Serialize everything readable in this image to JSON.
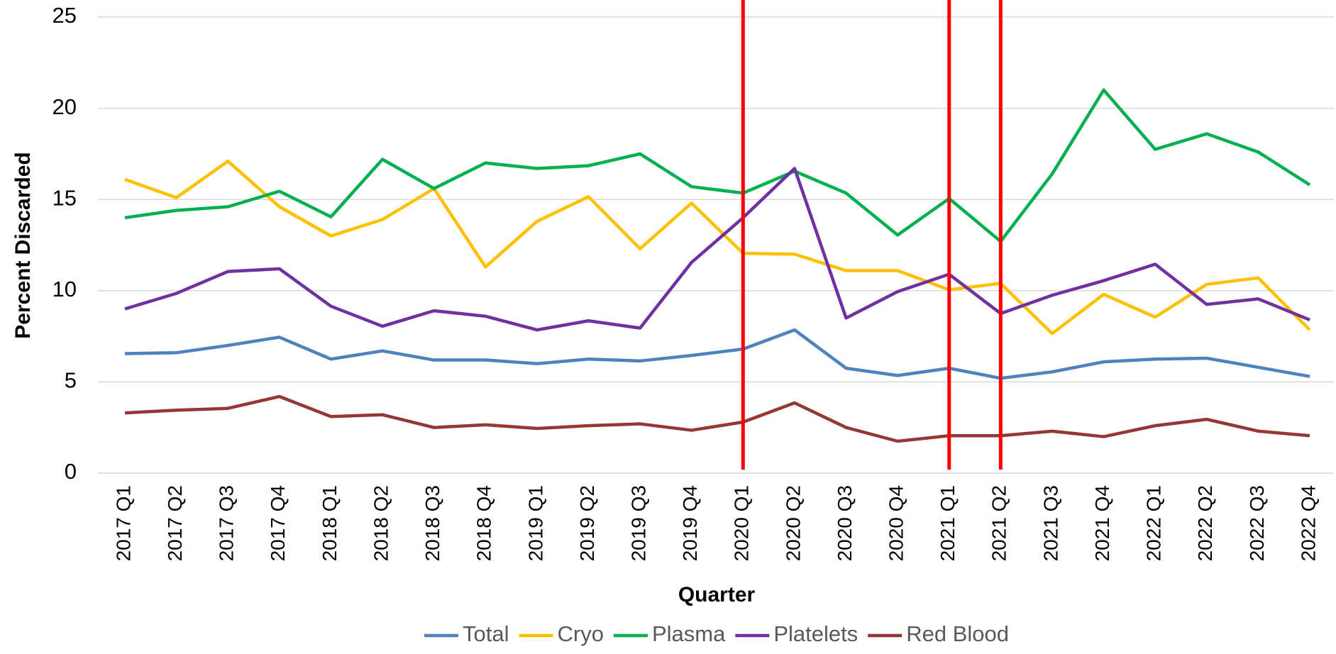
{
  "chart_data": {
    "type": "line",
    "x_label": "Quarter",
    "y_label": "Percent Discarded",
    "categories": [
      "2017 Q1",
      "2017 Q2",
      "2017 Q3",
      "2017 Q4",
      "2018 Q1",
      "2018 Q2",
      "2018 Q3",
      "2018 Q4",
      "2019 Q1",
      "2019 Q2",
      "2019 Q3",
      "2019 Q4",
      "2020 Q1",
      "2020 Q2",
      "2020 Q3",
      "2020 Q4",
      "2021 Q1",
      "2021 Q2",
      "2021 Q3",
      "2021 Q4",
      "2022 Q1",
      "2022 Q2",
      "2022 Q3",
      "2022 Q4"
    ],
    "series": [
      {
        "name": "Total",
        "color": "#4f81bd",
        "values": [
          6.55,
          6.6,
          7.0,
          7.45,
          6.25,
          6.7,
          6.2,
          6.2,
          6.0,
          6.25,
          6.15,
          6.45,
          6.8,
          7.85,
          5.75,
          5.35,
          5.75,
          5.2,
          5.55,
          6.1,
          6.25,
          6.3,
          5.8,
          5.3
        ]
      },
      {
        "name": "Cryo",
        "color": "#ffc000",
        "values": [
          16.1,
          15.1,
          17.1,
          14.6,
          13.0,
          13.9,
          15.6,
          11.3,
          13.8,
          15.15,
          12.3,
          14.8,
          12.05,
          12.0,
          11.1,
          11.1,
          10.05,
          10.4,
          7.65,
          9.8,
          8.55,
          10.35,
          10.7,
          7.85
        ]
      },
      {
        "name": "Plasma",
        "color": "#00b050",
        "values": [
          14.0,
          14.4,
          14.6,
          15.45,
          14.05,
          17.2,
          15.6,
          17.0,
          16.7,
          16.85,
          17.5,
          15.7,
          15.35,
          16.55,
          15.35,
          13.05,
          15.05,
          12.7,
          16.4,
          21.0,
          17.75,
          18.6,
          17.6,
          15.8
        ]
      },
      {
        "name": "Platelets",
        "color": "#7030a0",
        "values": [
          9.0,
          9.85,
          11.05,
          11.2,
          9.15,
          8.05,
          8.9,
          8.6,
          7.85,
          8.35,
          7.95,
          11.55,
          14.0,
          16.7,
          8.5,
          9.95,
          10.9,
          8.75,
          9.75,
          10.55,
          11.45,
          9.25,
          9.55,
          8.4
        ]
      },
      {
        "name": "Red Blood",
        "color": "#953735",
        "values": [
          3.3,
          3.45,
          3.55,
          4.2,
          3.1,
          3.2,
          2.5,
          2.65,
          2.45,
          2.6,
          2.7,
          2.35,
          2.8,
          3.85,
          2.5,
          1.75,
          2.05,
          2.05,
          2.3,
          2.0,
          2.6,
          2.95,
          2.3,
          2.05
        ]
      }
    ],
    "vertical_lines": {
      "categories": [
        "2020 Q1",
        "2021 Q1",
        "2021 Q2"
      ],
      "color": "#ff0000"
    },
    "ylim": [
      0,
      25
    ],
    "yticks": [
      0,
      5,
      10,
      15,
      20,
      25
    ],
    "grid": true,
    "legend": "bottom"
  }
}
